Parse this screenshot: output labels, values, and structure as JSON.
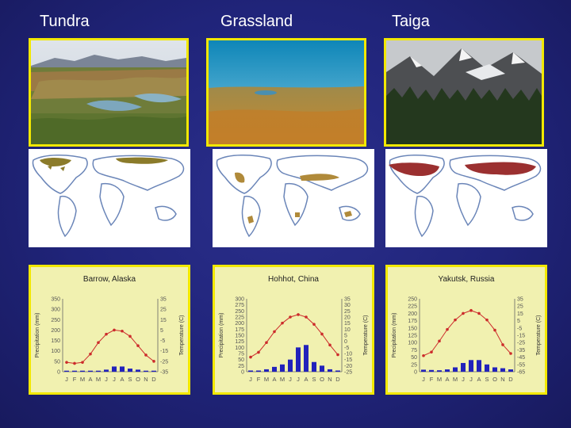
{
  "columns": [
    {
      "title": "Tundra"
    },
    {
      "title": "Grassland"
    },
    {
      "title": "Taiga"
    }
  ],
  "colors": {
    "background": "#20247a",
    "frame": "#f2e800",
    "tundra_region": "#8b7b2a",
    "grassland_region": "#b08a3a",
    "taiga_region": "#9b3030",
    "temperature_line": "#cc2b2b",
    "precip_bars": "#2222bb"
  },
  "chart_data": [
    {
      "type": "bar",
      "title": "Barrow, Alaska",
      "categories": [
        "J",
        "F",
        "M",
        "A",
        "M",
        "J",
        "J",
        "A",
        "S",
        "O",
        "N",
        "D"
      ],
      "xticks": [
        "J",
        "F",
        "M",
        "A",
        "M",
        "J",
        "J",
        "A",
        "S",
        "O",
        "N",
        "D"
      ],
      "ylabel": "Precipitation (mm)",
      "ylim": [
        0,
        350
      ],
      "yticks": [
        "350",
        "300",
        "250",
        "200",
        "150",
        "100",
        "50",
        "0"
      ],
      "y2label": "Temperature (C)",
      "y2lim": [
        -35,
        35
      ],
      "y2ticks": [
        "35",
        "25",
        "15",
        "5",
        "-5",
        "-15",
        "-25",
        "-35"
      ],
      "series": [
        {
          "type": "bar",
          "axis": "left",
          "values": [
            5,
            5,
            5,
            5,
            5,
            10,
            25,
            25,
            15,
            10,
            5,
            5
          ]
        },
        {
          "type": "line",
          "axis": "right",
          "values": [
            -26,
            -27,
            -26,
            -18,
            -7,
            1,
            5,
            4,
            -1,
            -10,
            -19,
            -25
          ]
        }
      ]
    },
    {
      "type": "bar",
      "title": "Hohhot, China",
      "categories": [
        "J",
        "F",
        "M",
        "A",
        "M",
        "J",
        "J",
        "A",
        "S",
        "O",
        "N",
        "D"
      ],
      "xticks": [
        "J",
        "F",
        "M",
        "A",
        "M",
        "J",
        "J",
        "A",
        "S",
        "O",
        "N",
        "D"
      ],
      "ylabel": "Precipitation (mm)",
      "ylim": [
        0,
        300
      ],
      "yticks": [
        "300",
        "275",
        "250",
        "225",
        "200",
        "175",
        "150",
        "125",
        "100",
        "75",
        "50",
        "25",
        "0"
      ],
      "y2label": "Temperature (C)",
      "y2lim": [
        -25,
        35
      ],
      "y2ticks": [
        "35",
        "30",
        "25",
        "20",
        "15",
        "10",
        "5",
        "0",
        "-5",
        "-10",
        "-15",
        "-20",
        "-25"
      ],
      "series": [
        {
          "type": "bar",
          "axis": "left",
          "values": [
            5,
            5,
            10,
            20,
            30,
            50,
            100,
            110,
            40,
            25,
            10,
            5
          ]
        },
        {
          "type": "line",
          "axis": "right",
          "values": [
            -13,
            -9,
            -1,
            8,
            15,
            20,
            22,
            20,
            14,
            6,
            -3,
            -11
          ]
        }
      ]
    },
    {
      "type": "bar",
      "title": "Yakutsk, Russia",
      "categories": [
        "J",
        "F",
        "M",
        "A",
        "M",
        "J",
        "J",
        "A",
        "S",
        "O",
        "N",
        "D"
      ],
      "xticks": [
        "J",
        "F",
        "M",
        "A",
        "M",
        "J",
        "J",
        "A",
        "S",
        "O",
        "N",
        "D"
      ],
      "ylabel": "Precipitation (mm)",
      "ylim": [
        0,
        250
      ],
      "yticks": [
        "250",
        "225",
        "200",
        "175",
        "150",
        "125",
        "100",
        "75",
        "50",
        "25",
        "0"
      ],
      "y2label": "Temperature (C)",
      "y2lim": [
        -65,
        35
      ],
      "y2ticks": [
        "35",
        "25",
        "15",
        "5",
        "-5",
        "-15",
        "-25",
        "-35",
        "-45",
        "-55",
        "-65"
      ],
      "series": [
        {
          "type": "bar",
          "axis": "left",
          "values": [
            7,
            6,
            5,
            8,
            15,
            30,
            40,
            40,
            25,
            15,
            12,
            8
          ]
        },
        {
          "type": "line",
          "axis": "right",
          "values": [
            -43,
            -38,
            -23,
            -7,
            6,
            15,
            19,
            15,
            6,
            -8,
            -28,
            -40
          ]
        }
      ]
    }
  ]
}
